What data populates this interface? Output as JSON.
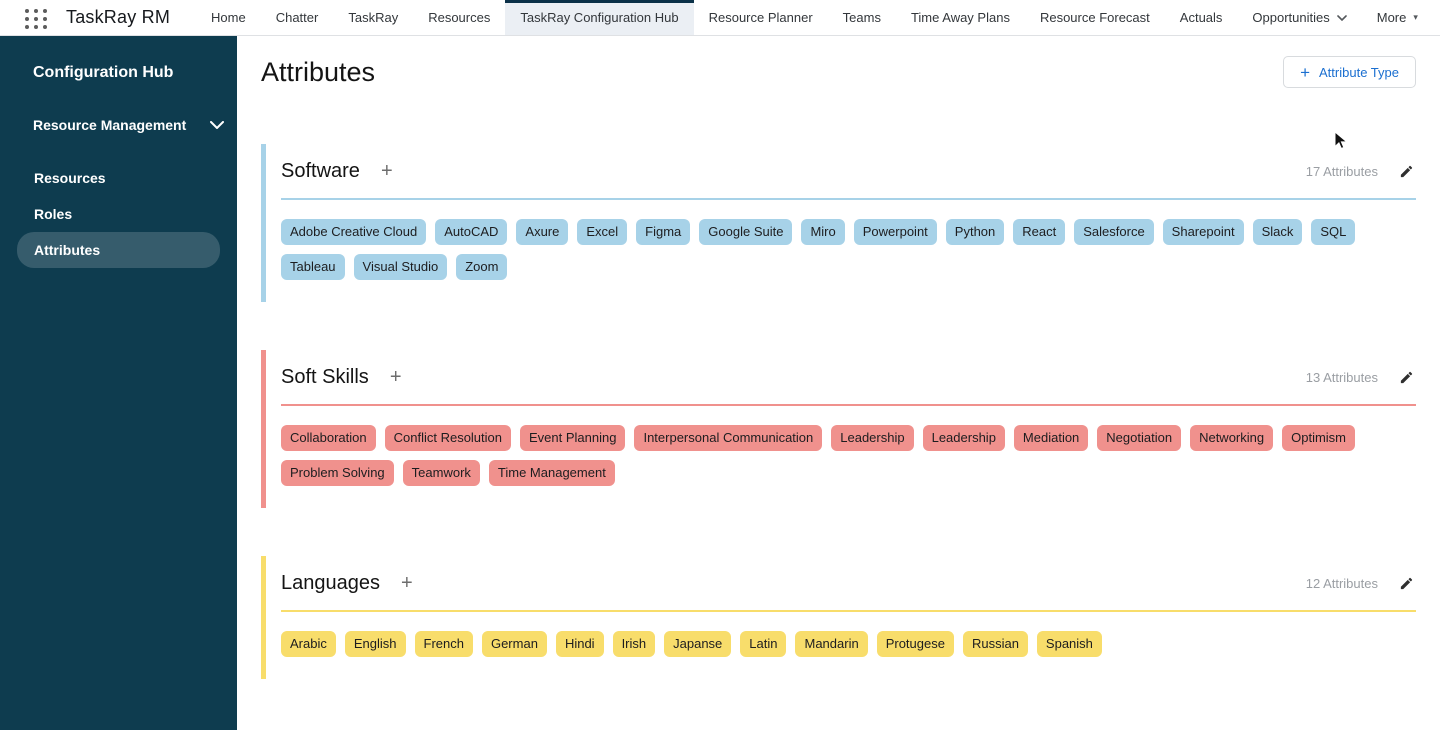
{
  "nav": {
    "app_name": "TaskRay RM",
    "active_tab": "TaskRay Configuration Hub",
    "tabs": [
      {
        "label": "Home"
      },
      {
        "label": "Chatter"
      },
      {
        "label": "TaskRay"
      },
      {
        "label": "Resources"
      },
      {
        "label": "TaskRay Configuration Hub"
      },
      {
        "label": "Resource Planner"
      },
      {
        "label": "Teams"
      },
      {
        "label": "Time Away Plans"
      },
      {
        "label": "Resource Forecast"
      },
      {
        "label": "Actuals"
      },
      {
        "label": "Opportunities",
        "dropdown": "chevron"
      },
      {
        "label": "More",
        "dropdown": "caret"
      }
    ]
  },
  "sidebar": {
    "title": "Configuration Hub",
    "group_label": "Resource Management",
    "items": [
      {
        "label": "Resources",
        "active": false
      },
      {
        "label": "Roles",
        "active": false
      },
      {
        "label": "Attributes",
        "active": true
      }
    ]
  },
  "main": {
    "title": "Attributes",
    "add_button_label": "Attribute Type",
    "sections": [
      {
        "name": "Software",
        "count_label": "17 Attributes",
        "color": "#a7d2e8",
        "tags": [
          "Adobe Creative Cloud",
          "AutoCAD",
          "Axure",
          "Excel",
          "Figma",
          "Google Suite",
          "Miro",
          "Powerpoint",
          "Python",
          "React",
          "Salesforce",
          "Sharepoint",
          "Slack",
          "SQL",
          "Tableau",
          "Visual Studio",
          "Zoom"
        ]
      },
      {
        "name": "Soft Skills",
        "count_label": "13 Attributes",
        "color": "#f0918d",
        "tags": [
          "Collaboration",
          "Conflict Resolution",
          "Event Planning",
          "Interpersonal Communication",
          "Leadership",
          "Leadership",
          "Mediation",
          "Negotiation",
          "Networking",
          "Optimism",
          "Problem Solving",
          "Teamwork",
          "Time Management"
        ]
      },
      {
        "name": "Languages",
        "count_label": "12 Attributes",
        "color": "#f8dd6b",
        "tags": [
          "Arabic",
          "English",
          "French",
          "German",
          "Hindi",
          "Irish",
          "Japanse",
          "Latin",
          "Mandarin",
          "Protugese",
          "Russian",
          "Spanish"
        ]
      }
    ]
  },
  "colors": {
    "sidebar_bg": "#0e3c4f",
    "active_tab_bar": "#0b3148",
    "link_blue": "#1b6fd0",
    "software_accent": "#a7d2e8",
    "soft_skills_accent": "#f0918d",
    "languages_accent": "#f8dd6b"
  }
}
